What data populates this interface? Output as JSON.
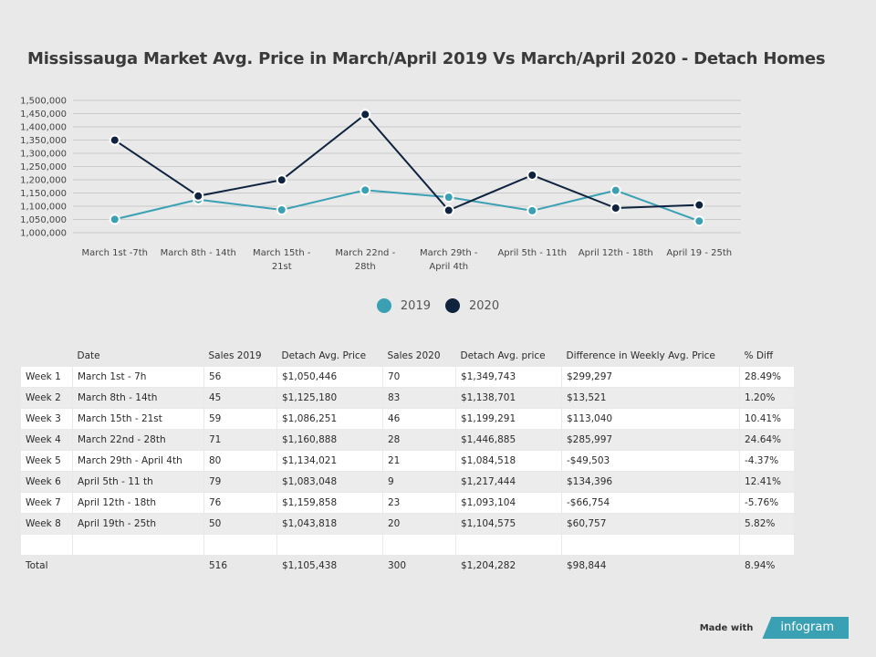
{
  "title": "Mississauga Market Avg. Price in March/April 2019 Vs March/April 2020 - Detach Homes",
  "chart_data": {
    "type": "line",
    "categories": [
      "March 1st -7th",
      "March 8th - 14th",
      "March 15th - 21st",
      "March 22nd - 28th",
      "March 29th - April 4th",
      "April 5th - 11th",
      "April 12th - 18th",
      "April 19 - 25th"
    ],
    "series": [
      {
        "name": "2019",
        "color": "#3aa0b4",
        "values": [
          1050446,
          1125180,
          1086251,
          1160888,
          1134021,
          1083048,
          1159858,
          1043818
        ]
      },
      {
        "name": "2020",
        "color": "#0f233f",
        "values": [
          1349743,
          1138701,
          1199291,
          1446885,
          1084518,
          1217444,
          1093104,
          1104575
        ]
      }
    ],
    "yticks": [
      "1,500,000",
      "1,450,000",
      "1,400,000",
      "1,350,000",
      "1,300,000",
      "1,250,000",
      "1,200,000",
      "1,150,000",
      "1,100,000",
      "1,050,000",
      "1,000,000"
    ],
    "ylim": [
      1000000,
      1500000
    ],
    "grid": true,
    "legend_position": "bottom-center"
  },
  "table": {
    "headers": [
      "",
      "Date",
      "Sales 2019",
      "Detach Avg. Price",
      "Sales 2020",
      "Detach Avg. price",
      "Difference in Weekly Avg. Price",
      "% Diff"
    ],
    "rows": [
      [
        "Week 1",
        "March 1st - 7h",
        "56",
        "$1,050,446",
        "70",
        "$1,349,743",
        "$299,297",
        "28.49%"
      ],
      [
        "Week 2",
        "March 8th - 14th",
        "45",
        "$1,125,180",
        "83",
        "$1,138,701",
        "$13,521",
        "1.20%"
      ],
      [
        "Week 3",
        "March 15th - 21st",
        "59",
        "$1,086,251",
        "46",
        "$1,199,291",
        "$113,040",
        "10.41%"
      ],
      [
        "Week 4",
        "March 22nd - 28th",
        "71",
        "$1,160,888",
        "28",
        "$1,446,885",
        "$285,997",
        "24.64%"
      ],
      [
        "Week 5",
        "March 29th - April 4th",
        "80",
        "$1,134,021",
        "21",
        "$1,084,518",
        "-$49,503",
        "-4.37%"
      ],
      [
        "Week 6",
        "April 5th - 11 th",
        "79",
        "$1,083,048",
        "9",
        "$1,217,444",
        "$134,396",
        "12.41%"
      ],
      [
        "Week 7",
        "April 12th - 18th",
        "76",
        "$1,159,858",
        "23",
        "$1,093,104",
        "-$66,754",
        "-5.76%"
      ],
      [
        "Week 8",
        "April 19th - 25th",
        "50",
        "$1,043,818",
        "20",
        "$1,104,575",
        "$60,757",
        "5.82%"
      ]
    ],
    "total": [
      "Total",
      "",
      "516",
      "$1,105,438",
      "300",
      "$1,204,282",
      "$98,844",
      "8.94%"
    ]
  },
  "footer": {
    "made_with": "Made with",
    "brand": "infogram"
  }
}
